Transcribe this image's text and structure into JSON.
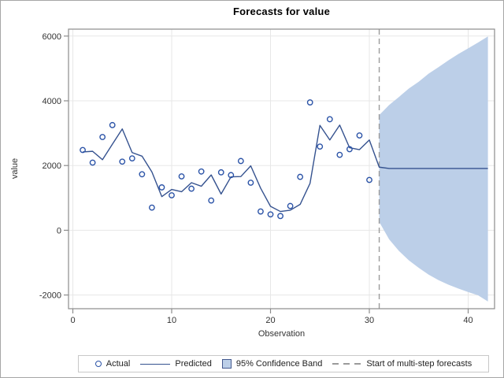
{
  "figure": {
    "title": "Forecasts for value"
  },
  "legend": {
    "items": [
      {
        "label": "Actual",
        "icon": "circle-marker-icon"
      },
      {
        "label": "Predicted",
        "icon": "line-swatch-icon"
      },
      {
        "label": "95% Confidence Band",
        "icon": "band-swatch-icon"
      },
      {
        "label": "Start of multi-step forecasts",
        "icon": "dashed-line-icon"
      }
    ]
  },
  "chart_data": {
    "type": "line",
    "title": "Forecasts for value",
    "xlabel": "Observation",
    "ylabel": "value",
    "xlim": [
      -0.45,
      42.7
    ],
    "ylim": [
      -2420,
      6250
    ],
    "x_ticks": [
      0,
      10,
      20,
      30,
      40
    ],
    "y_ticks": [
      -2000,
      0,
      2000,
      4000,
      6000
    ],
    "grid": "on",
    "legend_position": "bottom",
    "forecast_start_x": 31,
    "series": [
      {
        "name": "Actual",
        "type": "scatter",
        "x": [
          1,
          2,
          3,
          4,
          5,
          6,
          7,
          8,
          9,
          10,
          11,
          12,
          13,
          14,
          15,
          16,
          17,
          18,
          19,
          20,
          21,
          22,
          23,
          24,
          25,
          26,
          27,
          28,
          29,
          30
        ],
        "y": [
          2480,
          2090,
          2880,
          3250,
          2120,
          2220,
          1730,
          700,
          1325,
          1080,
          1665,
          1285,
          1815,
          920,
          1790,
          1705,
          2140,
          1470,
          580,
          490,
          440,
          750,
          1650,
          3950,
          2585,
          3430,
          2330,
          2505,
          2930,
          1555
        ]
      },
      {
        "name": "Predicted",
        "type": "line",
        "x": [
          1,
          2,
          3,
          4,
          5,
          6,
          7,
          8,
          9,
          10,
          11,
          12,
          13,
          14,
          15,
          16,
          17,
          18,
          19,
          20,
          21,
          22,
          23,
          24,
          25,
          26,
          27,
          28,
          29,
          30,
          31,
          32,
          33,
          34,
          35,
          36,
          37,
          38,
          39,
          40,
          41,
          42
        ],
        "y": [
          2420,
          2440,
          2180,
          2660,
          3130,
          2400,
          2290,
          1800,
          1040,
          1260,
          1190,
          1470,
          1360,
          1710,
          1120,
          1650,
          1660,
          1990,
          1300,
          740,
          580,
          620,
          800,
          1450,
          3240,
          2790,
          3250,
          2550,
          2490,
          2790,
          1950,
          1910,
          1910,
          1910,
          1910,
          1910,
          1910,
          1910,
          1910,
          1910,
          1910,
          1910
        ]
      },
      {
        "name": "95% Confidence Band",
        "type": "band",
        "x": [
          31,
          32,
          33,
          34,
          35,
          36,
          37,
          38,
          39,
          40,
          41,
          42
        ],
        "upper": [
          3560,
          3870,
          4120,
          4380,
          4590,
          4840,
          5040,
          5250,
          5445,
          5620,
          5800,
          5990
        ],
        "lower": [
          260,
          -280,
          -640,
          -930,
          -1160,
          -1370,
          -1540,
          -1680,
          -1800,
          -1910,
          -2010,
          -2200
        ]
      }
    ],
    "colors": {
      "marker": "#2b53a7",
      "line": "#35528f",
      "band_fill": "#bccfe8",
      "forecast_start_line": "#9b9b9b",
      "grid": "#e7e7e7",
      "frame": "#8c8c8c",
      "tick_text": "#333333"
    }
  }
}
